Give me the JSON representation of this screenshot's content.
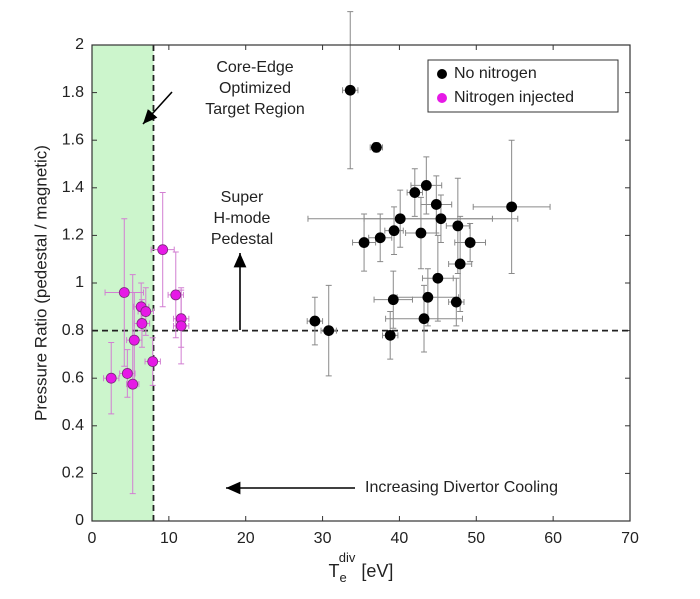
{
  "chart_data": {
    "type": "scatter",
    "ylabel": "Pressure Ratio (pedestal / magnetic)",
    "xlabel": {
      "base": "T",
      "sub": "e",
      "sup": "div",
      "unit": "[eV]"
    },
    "xlim": [
      0,
      70
    ],
    "ylim": [
      0,
      2
    ],
    "xticks": [
      0,
      10,
      20,
      30,
      40,
      50,
      60,
      70
    ],
    "yticks": [
      0,
      0.2,
      0.4,
      0.6,
      0.8,
      1,
      1.2,
      1.4,
      1.6,
      1.8,
      2
    ],
    "legend": "upper right",
    "region": {
      "xlim": [
        0,
        8
      ],
      "ylim": [
        0,
        2
      ],
      "color": "#ccf5cc"
    },
    "reference_lines": [
      {
        "axis": "x",
        "value": 8
      },
      {
        "axis": "y",
        "value": 0.8
      }
    ],
    "annotations": [
      {
        "lines": [
          "Core-Edge",
          "Optimized",
          "Target Region"
        ]
      },
      {
        "lines": [
          "Super",
          "H-mode",
          "Pedestal"
        ]
      },
      {
        "lines": [
          "Increasing Divertor Cooling"
        ]
      }
    ],
    "series": [
      {
        "name": "No nitrogen",
        "color": "#000000",
        "errcolor": "#8a8a8a",
        "x": [
          33.6,
          37.0,
          35.4,
          37.5,
          39.3,
          40.1,
          42.0,
          43.5,
          44.8,
          45.4,
          42.8,
          47.6,
          49.2,
          54.6,
          45.0,
          47.9,
          39.2,
          43.7,
          47.4,
          43.2,
          29.0,
          30.8,
          38.8
        ],
        "values": [
          1.81,
          1.57,
          1.17,
          1.19,
          1.22,
          1.27,
          1.38,
          1.41,
          1.33,
          1.27,
          1.21,
          1.24,
          1.17,
          1.32,
          1.02,
          1.08,
          0.93,
          0.94,
          0.92,
          0.85,
          0.84,
          0.8,
          0.78
        ],
        "xerr": [
          1.0,
          0.8,
          1.5,
          1.5,
          1.2,
          12.0,
          1.0,
          2.0,
          2.0,
          10.0,
          2.0,
          1.5,
          2.0,
          5.0,
          2.0,
          1.5,
          2.5,
          4.0,
          1.0,
          5.0,
          1.0,
          1.0,
          1.0
        ],
        "yerr": [
          0.33,
          0.02,
          0.12,
          0.1,
          0.1,
          0.12,
          0.1,
          0.12,
          0.12,
          0.1,
          0.15,
          0.2,
          0.08,
          0.28,
          0.18,
          0.2,
          0.12,
          0.12,
          0.1,
          0.14,
          0.1,
          0.19,
          0.1
        ]
      },
      {
        "name": "Nitrogen injected",
        "color": "#e619e6",
        "errcolor": "#d27fd2",
        "x": [
          4.2,
          6.4,
          7.0,
          6.5,
          9.2,
          10.9,
          11.6,
          11.6,
          5.5,
          7.9,
          4.6,
          2.5,
          5.3
        ],
        "values": [
          0.96,
          0.9,
          0.88,
          0.83,
          1.14,
          0.95,
          0.85,
          0.82,
          0.76,
          0.67,
          0.62,
          0.6,
          0.575
        ],
        "xerr": [
          2.5,
          1.0,
          1.0,
          1.0,
          1.5,
          1.0,
          1.0,
          1.0,
          1.0,
          1.0,
          1.0,
          1.0,
          0.8
        ],
        "yerr": [
          0.31,
          0.1,
          0.1,
          0.1,
          0.24,
          0.18,
          0.12,
          0.16,
          0.2,
          0.1,
          0.1,
          0.15,
          0.46
        ]
      }
    ]
  }
}
